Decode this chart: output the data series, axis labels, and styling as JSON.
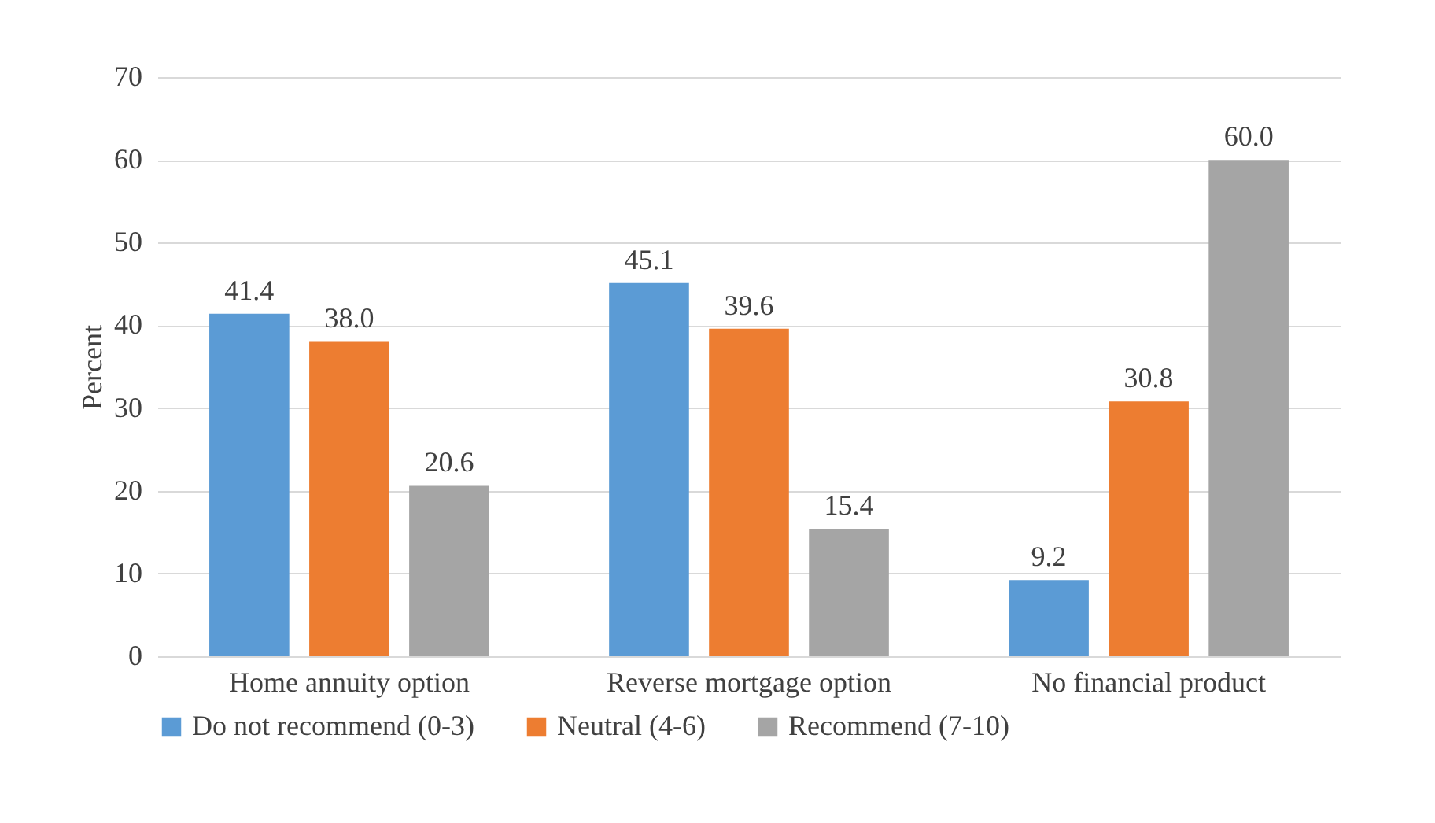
{
  "chart_data": {
    "type": "bar",
    "ylabel": "Percent",
    "categories": [
      "Home annuity option",
      "Reverse mortgage option",
      "No financial product"
    ],
    "series": [
      {
        "name": "Do not recommend (0-3)",
        "color": "#5b9bd5",
        "values": [
          41.4,
          45.1,
          9.2
        ]
      },
      {
        "name": "Neutral (4-6)",
        "color": "#ed7d31",
        "values": [
          38.0,
          39.6,
          30.8
        ]
      },
      {
        "name": "Recommend (7-10)",
        "color": "#a5a5a5",
        "values": [
          20.6,
          15.4,
          60.0
        ]
      }
    ],
    "value_labels": [
      [
        "41.4",
        "45.1",
        "9.2"
      ],
      [
        "38.0",
        "39.6",
        "30.8"
      ],
      [
        "20.6",
        "15.4",
        "60.0"
      ]
    ],
    "ylim": [
      0,
      70
    ],
    "yticks": [
      0,
      10,
      20,
      30,
      40,
      50,
      60,
      70
    ],
    "grid": "y",
    "legend": "bottom"
  }
}
